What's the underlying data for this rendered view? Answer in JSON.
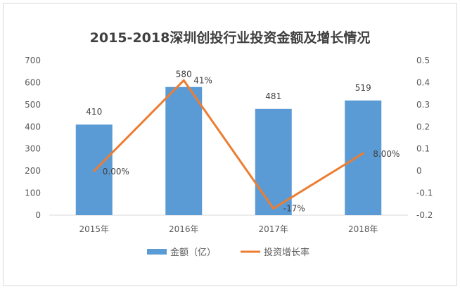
{
  "chart_data": {
    "type": "bar+line",
    "title": "2015-2018深圳创投行业投资金额及增长情况",
    "categories": [
      "2015年",
      "2016年",
      "2017年",
      "2018年"
    ],
    "series": [
      {
        "name": "金额（亿）",
        "type": "bar",
        "axis": "left",
        "values": [
          410,
          580,
          481,
          519
        ],
        "labels": [
          "410",
          "580",
          "481",
          "519"
        ],
        "color": "#5b9bd5"
      },
      {
        "name": "投资增长率",
        "type": "line",
        "axis": "right",
        "values": [
          0,
          0.41,
          -0.17,
          0.08
        ],
        "labels": [
          "0.00%",
          "41%",
          "-17%",
          "8.00%"
        ],
        "color": "#ed7d31"
      }
    ],
    "y_left": {
      "min": 0,
      "max": 700,
      "ticks": [
        "0",
        "100",
        "200",
        "300",
        "400",
        "500",
        "600",
        "700"
      ]
    },
    "y_right": {
      "min": -0.2,
      "max": 0.5,
      "ticks": [
        "-0.2",
        "-0.1",
        "0",
        "0.1",
        "0.2",
        "0.3",
        "0.4",
        "0.5"
      ]
    },
    "grid": false,
    "legend_position": "bottom"
  }
}
